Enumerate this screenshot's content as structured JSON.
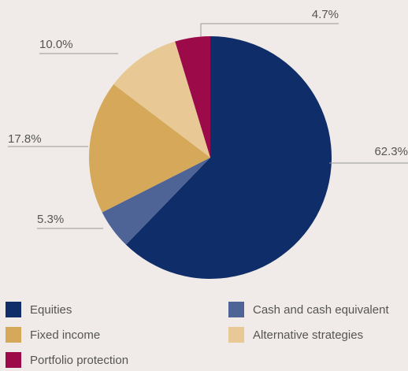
{
  "chart_data": {
    "type": "pie",
    "categories": [
      "Equities",
      "Cash and cash equivalent",
      "Fixed income",
      "Alternative strategies",
      "Portfolio protection"
    ],
    "values": [
      62.3,
      5.3,
      17.8,
      10.0,
      4.7
    ],
    "value_labels": [
      "62.3%",
      "5.3%",
      "17.8%",
      "10.0%",
      "4.7%"
    ],
    "colors": [
      "#0f2d69",
      "#4f6496",
      "#d5a85a",
      "#e8c995",
      "#9c0a4a"
    ]
  }
}
